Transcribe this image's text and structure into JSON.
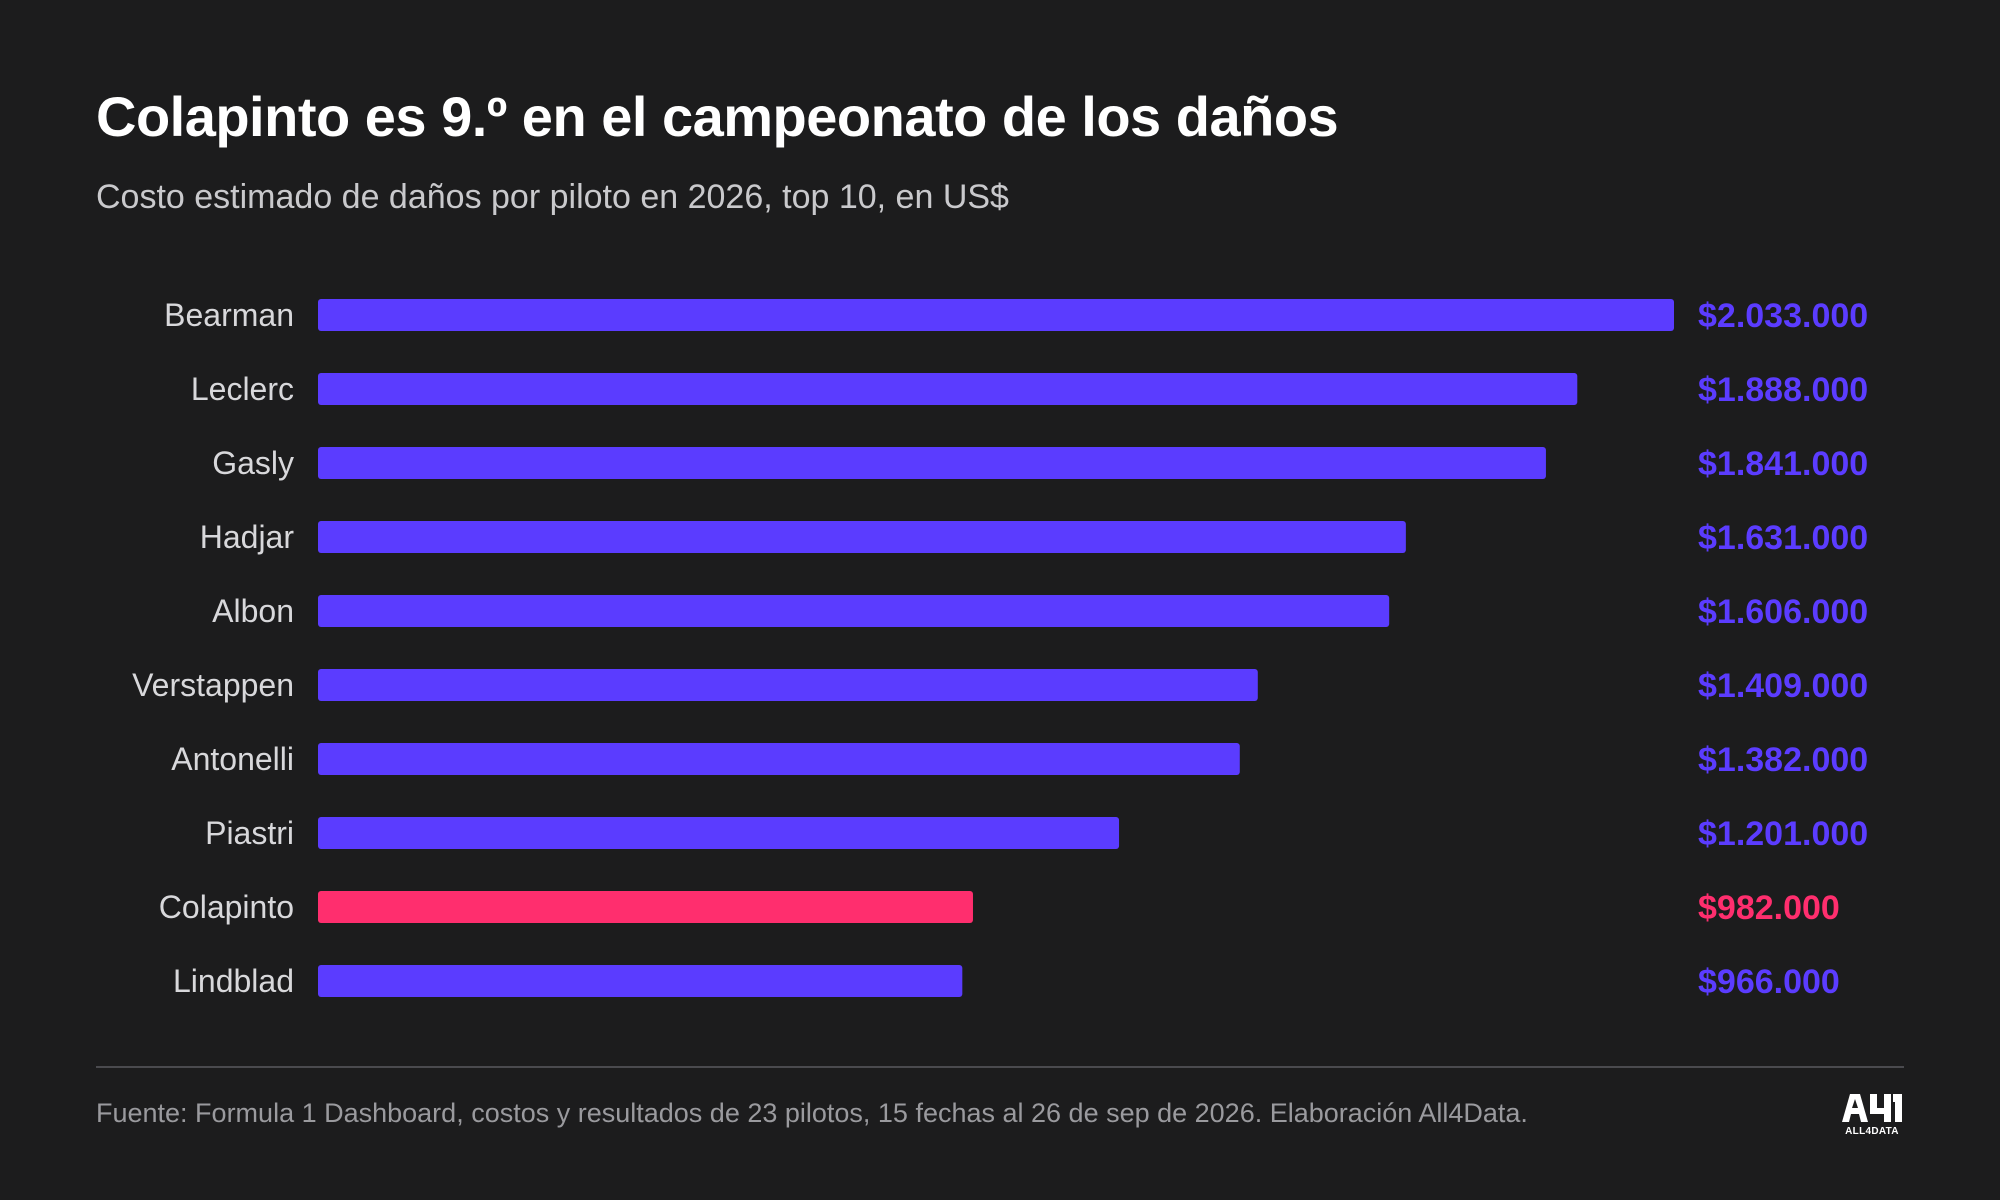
{
  "header": {
    "title": "Colapinto es 9.º en el campeonato de los daños",
    "subtitle": "Costo estimado de daños por piloto en 2026, top 10, en US$"
  },
  "chart_data": {
    "type": "bar",
    "orientation": "horizontal",
    "categories": [
      "Bearman",
      "Leclerc",
      "Gasly",
      "Hadjar",
      "Albon",
      "Verstappen",
      "Antonelli",
      "Piastri",
      "Colapinto",
      "Lindblad"
    ],
    "values": [
      2033000,
      1888000,
      1841000,
      1631000,
      1606000,
      1409000,
      1382000,
      1201000,
      982000,
      966000
    ],
    "value_labels": [
      "$2.033.000",
      "$1.888.000",
      "$1.841.000",
      "$1.631.000",
      "$1.606.000",
      "$1.409.000",
      "$1.382.000",
      "$1.201.000",
      "$982.000",
      "$966.000"
    ],
    "highlight": "Colapinto",
    "xlim": [
      0,
      2033000
    ],
    "grid": false,
    "legend": "none"
  },
  "colors": {
    "bar": "#5b3cff",
    "highlight": "#ff2e6e",
    "background": "#1c1c1d",
    "label": "#d8d8db"
  },
  "footer": {
    "source": "Fuente: Formula 1 Dashboard, costos y resultados de 23 pilotos, 15 fechas al 26 de sep de 2026. Elaboración All4Data.",
    "logo_text": "ALL4DATA",
    "logo_icon": "all4data-logo-icon"
  }
}
